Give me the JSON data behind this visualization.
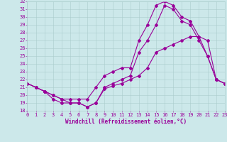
{
  "xlabel": "Windchill (Refroidissement éolien,°C)",
  "bg_color": "#cce8ea",
  "grid_color": "#aacccc",
  "line_color": "#990099",
  "xlim": [
    0,
    23
  ],
  "ylim": [
    18,
    32
  ],
  "yticks": [
    18,
    19,
    20,
    21,
    22,
    23,
    24,
    25,
    26,
    27,
    28,
    29,
    30,
    31,
    32
  ],
  "xticks": [
    0,
    1,
    2,
    3,
    4,
    5,
    6,
    7,
    8,
    9,
    10,
    11,
    12,
    13,
    14,
    15,
    16,
    17,
    18,
    19,
    20,
    21,
    22,
    23
  ],
  "line1_x": [
    0,
    1,
    2,
    3,
    4,
    5,
    6,
    7,
    8,
    9,
    10,
    11,
    12,
    13,
    14,
    15,
    16,
    17,
    18,
    19,
    20,
    21,
    22,
    23
  ],
  "line1_y": [
    21.5,
    21.0,
    20.5,
    19.5,
    19.0,
    19.0,
    19.0,
    18.5,
    19.0,
    20.8,
    21.2,
    21.5,
    22.0,
    22.5,
    23.5,
    25.5,
    26.0,
    26.5,
    27.0,
    27.5,
    27.5,
    27.0,
    22.0,
    21.5
  ],
  "line2_x": [
    0,
    1,
    2,
    3,
    4,
    5,
    6,
    7,
    8,
    9,
    10,
    11,
    12,
    13,
    14,
    15,
    16,
    17,
    18,
    19,
    20,
    21,
    22,
    23
  ],
  "line2_y": [
    21.5,
    21.0,
    20.5,
    20.0,
    19.5,
    19.5,
    19.5,
    19.5,
    21.0,
    22.5,
    23.0,
    23.5,
    23.5,
    27.0,
    29.0,
    31.5,
    32.0,
    31.5,
    30.0,
    29.5,
    27.5,
    25.0,
    22.0,
    21.5
  ],
  "line3_x": [
    0,
    1,
    2,
    3,
    4,
    5,
    6,
    7,
    8,
    9,
    10,
    11,
    12,
    13,
    14,
    15,
    16,
    17,
    18,
    19,
    20,
    21,
    22,
    23
  ],
  "line3_y": [
    21.5,
    21.0,
    20.5,
    20.0,
    19.5,
    19.0,
    19.0,
    18.5,
    19.0,
    21.0,
    21.5,
    22.0,
    22.5,
    25.5,
    27.0,
    29.0,
    31.5,
    31.0,
    29.5,
    29.0,
    27.0,
    25.0,
    22.0,
    21.5
  ],
  "marker_size": 2.0,
  "line_width": 0.8,
  "tick_fontsize": 5.0,
  "xlabel_fontsize": 5.5
}
